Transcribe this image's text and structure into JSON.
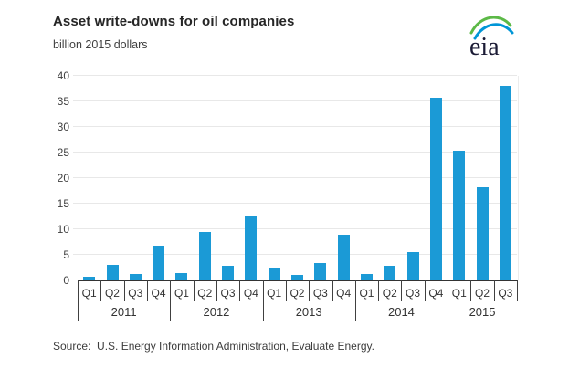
{
  "header": {
    "title": "Asset write-downs for oil companies",
    "subtitle": "billion 2015 dollars"
  },
  "logo": {
    "text": "eia",
    "green_swoosh_color": "#5cb947",
    "blue_swoosh_color": "#0096d7",
    "text_color": "#1b1b35"
  },
  "footer": {
    "source": "Source:  U.S. Energy Information Administration, Evaluate Energy."
  },
  "chart_data": {
    "type": "bar",
    "title": "Asset write-downs for oil companies",
    "ylabel": "billion 2015 dollars",
    "ylim": [
      0,
      40
    ],
    "ytick_step": 5,
    "grid": "horizontal",
    "legend": "none",
    "bar_color": "#1b9ad6",
    "years": [
      {
        "year": "2011",
        "quarters": [
          "Q1",
          "Q2",
          "Q3",
          "Q4"
        ],
        "values": [
          0.8,
          3.0,
          1.2,
          6.8
        ]
      },
      {
        "year": "2012",
        "quarters": [
          "Q1",
          "Q2",
          "Q3",
          "Q4"
        ],
        "values": [
          1.4,
          9.4,
          2.8,
          12.5
        ]
      },
      {
        "year": "2013",
        "quarters": [
          "Q1",
          "Q2",
          "Q3",
          "Q4"
        ],
        "values": [
          2.4,
          1.1,
          3.4,
          9.0
        ]
      },
      {
        "year": "2014",
        "quarters": [
          "Q1",
          "Q2",
          "Q3",
          "Q4"
        ],
        "values": [
          1.2,
          2.9,
          5.5,
          35.7
        ]
      },
      {
        "year": "2015",
        "quarters": [
          "Q1",
          "Q2",
          "Q3"
        ],
        "values": [
          25.3,
          18.2,
          38.1
        ]
      }
    ]
  }
}
